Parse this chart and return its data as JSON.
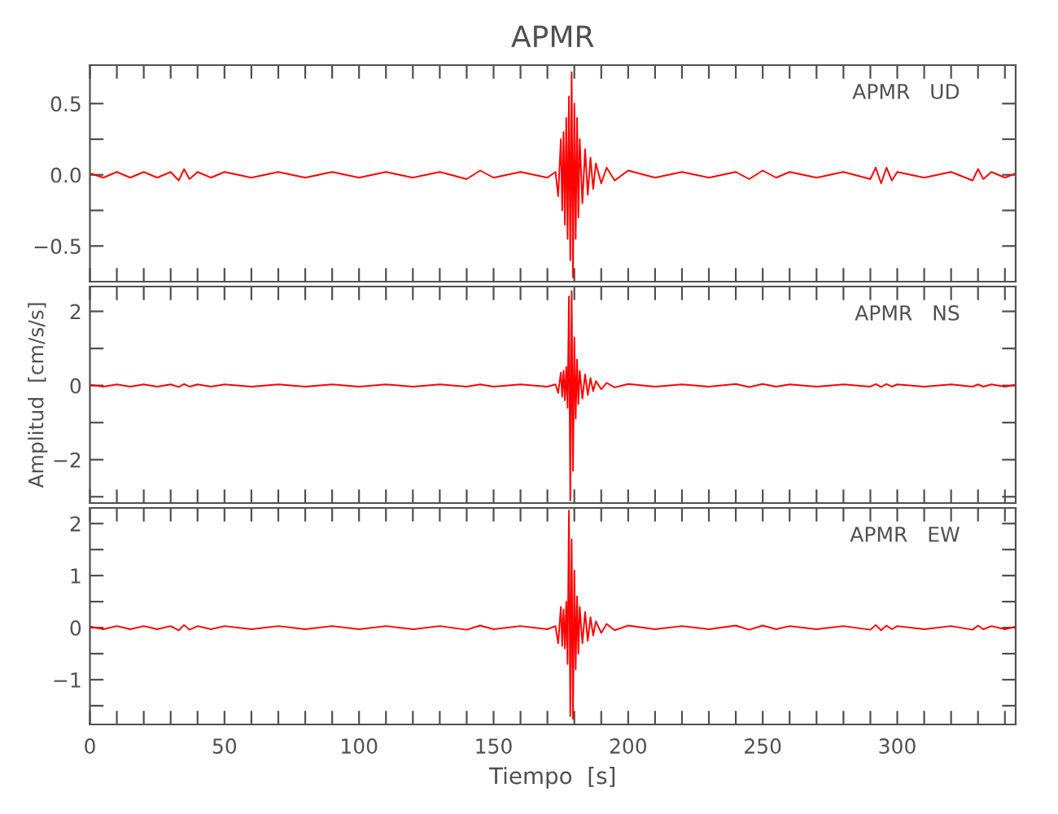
{
  "chart_data": [
    {
      "type": "line",
      "title": "APMR",
      "annotations": [
        "APMR   UD"
      ],
      "tick_labels": "y",
      "xlim": [
        0,
        344
      ],
      "xticks": [
        0,
        {
          "value": 10,
          "label": null
        },
        {
          "value": 20,
          "label": null
        },
        {
          "value": 30,
          "label": null
        },
        {
          "value": 40,
          "label": null
        },
        50,
        {
          "value": 60,
          "label": null
        },
        {
          "value": 70,
          "label": null
        },
        {
          "value": 80,
          "label": null
        },
        {
          "value": 90,
          "label": null
        },
        100,
        {
          "value": 110,
          "label": null
        },
        {
          "value": 120,
          "label": null
        },
        {
          "value": 130,
          "label": null
        },
        {
          "value": 140,
          "label": null
        },
        150,
        {
          "value": 160,
          "label": null
        },
        {
          "value": 170,
          "label": null
        },
        {
          "value": 180,
          "label": null
        },
        {
          "value": 190,
          "label": null
        },
        200,
        {
          "value": 210,
          "label": null
        },
        {
          "value": 220,
          "label": null
        },
        {
          "value": 230,
          "label": null
        },
        {
          "value": 240,
          "label": null
        },
        250,
        {
          "value": 260,
          "label": null
        },
        {
          "value": 270,
          "label": null
        },
        {
          "value": 280,
          "label": null
        },
        {
          "value": 290,
          "label": null
        },
        300,
        {
          "value": 310,
          "label": null
        },
        {
          "value": 320,
          "label": null
        },
        {
          "value": 330,
          "label": null
        },
        {
          "value": 340,
          "label": null
        }
      ],
      "ylim": [
        -0.75,
        0.77
      ],
      "yticks": [
        {
          "value": -0.5,
          "label": "−0.5"
        },
        {
          "value": -0.25,
          "label": null
        },
        {
          "value": 0,
          "label": "0.0"
        },
        {
          "value": 0.25,
          "label": null
        },
        {
          "value": 0.5,
          "label": "0.5"
        }
      ],
      "series": [
        {
          "color": "#ff0000",
          "x": [
            0,
            5,
            10,
            15,
            20,
            25,
            30,
            33,
            35,
            37,
            40,
            45,
            50,
            60,
            70,
            80,
            90,
            100,
            110,
            120,
            130,
            140,
            145,
            150,
            160,
            170,
            173,
            174,
            175,
            175.5,
            176,
            176.5,
            177,
            177.5,
            178,
            178.5,
            179,
            179.5,
            180,
            180.5,
            181,
            181.5,
            182,
            183,
            184,
            185,
            186,
            187,
            188,
            190,
            192,
            195,
            200,
            210,
            220,
            230,
            240,
            245,
            250,
            255,
            260,
            270,
            280,
            290,
            292,
            294,
            296,
            298,
            300,
            310,
            320,
            328,
            330,
            332,
            335,
            340,
            344
          ],
          "values": [
            0.01,
            -0.02,
            0.02,
            -0.02,
            0.02,
            -0.02,
            0.02,
            -0.04,
            0.04,
            -0.03,
            0.02,
            -0.02,
            0.02,
            -0.02,
            0.02,
            -0.02,
            0.02,
            -0.02,
            0.02,
            -0.02,
            0.02,
            -0.03,
            0.03,
            -0.02,
            0.02,
            -0.02,
            0.02,
            -0.15,
            0.25,
            -0.25,
            0.3,
            -0.35,
            0.4,
            -0.45,
            0.55,
            -0.6,
            0.72,
            -0.72,
            0.5,
            -0.45,
            0.4,
            -0.3,
            0.25,
            -0.2,
            0.18,
            -0.14,
            0.12,
            -0.1,
            0.08,
            -0.06,
            0.05,
            -0.04,
            0.03,
            -0.02,
            0.02,
            -0.02,
            0.02,
            -0.03,
            0.03,
            -0.02,
            0.02,
            -0.02,
            0.02,
            -0.03,
            0.05,
            -0.06,
            0.05,
            -0.04,
            0.02,
            -0.02,
            0.02,
            -0.04,
            0.04,
            -0.03,
            0.02,
            -0.02,
            0.01
          ]
        }
      ]
    },
    {
      "type": "line",
      "ylabel": "Amplitud  [cm/s/s]",
      "annotations": [
        "APMR   NS"
      ],
      "tick_labels": "y",
      "xlim": [
        0,
        344
      ],
      "xticks": [
        0,
        {
          "value": 10,
          "label": null
        },
        {
          "value": 20,
          "label": null
        },
        {
          "value": 30,
          "label": null
        },
        {
          "value": 40,
          "label": null
        },
        50,
        {
          "value": 60,
          "label": null
        },
        {
          "value": 70,
          "label": null
        },
        {
          "value": 80,
          "label": null
        },
        {
          "value": 90,
          "label": null
        },
        100,
        {
          "value": 110,
          "label": null
        },
        {
          "value": 120,
          "label": null
        },
        {
          "value": 130,
          "label": null
        },
        {
          "value": 140,
          "label": null
        },
        150,
        {
          "value": 160,
          "label": null
        },
        {
          "value": 170,
          "label": null
        },
        {
          "value": 180,
          "label": null
        },
        {
          "value": 190,
          "label": null
        },
        200,
        {
          "value": 210,
          "label": null
        },
        {
          "value": 220,
          "label": null
        },
        {
          "value": 230,
          "label": null
        },
        {
          "value": 240,
          "label": null
        },
        250,
        {
          "value": 260,
          "label": null
        },
        {
          "value": 270,
          "label": null
        },
        {
          "value": 280,
          "label": null
        },
        {
          "value": 290,
          "label": null
        },
        300,
        {
          "value": 310,
          "label": null
        },
        {
          "value": 320,
          "label": null
        },
        {
          "value": 330,
          "label": null
        },
        {
          "value": 340,
          "label": null
        }
      ],
      "ylim": [
        -3.17,
        2.67
      ],
      "yticks": [
        {
          "value": -3,
          "label": null
        },
        {
          "value": -2,
          "label": "−2"
        },
        {
          "value": -1,
          "label": null
        },
        0,
        {
          "value": 1,
          "label": null
        },
        2
      ],
      "series": [
        {
          "color": "#ff0000",
          "x": [
            0,
            5,
            10,
            15,
            20,
            25,
            30,
            33,
            35,
            37,
            40,
            45,
            50,
            60,
            70,
            80,
            90,
            100,
            110,
            120,
            130,
            140,
            145,
            150,
            160,
            170,
            173,
            174,
            175,
            175.5,
            176,
            176.5,
            177,
            177.5,
            178,
            178.5,
            179,
            179.5,
            180,
            180.5,
            181,
            181.5,
            182,
            183,
            184,
            185,
            186,
            187,
            188,
            190,
            192,
            195,
            200,
            210,
            220,
            230,
            240,
            245,
            250,
            255,
            260,
            270,
            280,
            290,
            292,
            294,
            296,
            298,
            300,
            310,
            320,
            328,
            330,
            332,
            335,
            340,
            344
          ],
          "values": [
            0.02,
            -0.03,
            0.03,
            -0.03,
            0.03,
            -0.03,
            0.03,
            -0.04,
            0.04,
            -0.03,
            0.03,
            -0.03,
            0.03,
            -0.03,
            0.03,
            -0.03,
            0.03,
            -0.03,
            0.03,
            -0.03,
            0.03,
            -0.03,
            0.03,
            -0.03,
            0.03,
            -0.03,
            0.03,
            -0.2,
            0.35,
            -0.3,
            0.4,
            -0.4,
            0.5,
            -0.6,
            2.4,
            -3.1,
            2.55,
            -2.3,
            1.3,
            -0.9,
            0.7,
            -0.5,
            0.4,
            -0.35,
            0.3,
            -0.25,
            0.2,
            -0.15,
            0.12,
            -0.1,
            0.07,
            -0.05,
            0.04,
            -0.03,
            0.03,
            -0.03,
            0.04,
            -0.04,
            0.04,
            -0.03,
            0.03,
            -0.03,
            0.03,
            -0.03,
            0.04,
            -0.04,
            0.04,
            -0.03,
            0.03,
            -0.03,
            0.03,
            -0.03,
            0.03,
            -0.03,
            0.03,
            -0.03,
            0.02
          ]
        }
      ]
    },
    {
      "type": "line",
      "xlabel": "Tiempo  [s]",
      "annotations": [
        "APMR   EW"
      ],
      "xlim": [
        0,
        344
      ],
      "xticks": [
        0,
        {
          "value": 10,
          "label": null
        },
        {
          "value": 20,
          "label": null
        },
        {
          "value": 30,
          "label": null
        },
        {
          "value": 40,
          "label": null
        },
        50,
        {
          "value": 60,
          "label": null
        },
        {
          "value": 70,
          "label": null
        },
        {
          "value": 80,
          "label": null
        },
        {
          "value": 90,
          "label": null
        },
        100,
        {
          "value": 110,
          "label": null
        },
        {
          "value": 120,
          "label": null
        },
        {
          "value": 130,
          "label": null
        },
        {
          "value": 140,
          "label": null
        },
        150,
        {
          "value": 160,
          "label": null
        },
        {
          "value": 170,
          "label": null
        },
        {
          "value": 180,
          "label": null
        },
        {
          "value": 190,
          "label": null
        },
        200,
        {
          "value": 210,
          "label": null
        },
        {
          "value": 220,
          "label": null
        },
        {
          "value": 230,
          "label": null
        },
        {
          "value": 240,
          "label": null
        },
        250,
        {
          "value": 260,
          "label": null
        },
        {
          "value": 270,
          "label": null
        },
        {
          "value": 280,
          "label": null
        },
        {
          "value": 290,
          "label": null
        },
        300,
        {
          "value": 310,
          "label": null
        },
        {
          "value": 320,
          "label": null
        },
        {
          "value": 330,
          "label": null
        },
        {
          "value": 340,
          "label": null
        }
      ],
      "ylim": [
        -1.86,
        2.3
      ],
      "yticks": [
        {
          "value": -1.5,
          "label": null
        },
        {
          "value": -1,
          "label": "−1"
        },
        {
          "value": -0.5,
          "label": null
        },
        0,
        {
          "value": 0.5,
          "label": null
        },
        1,
        {
          "value": 1.5,
          "label": null
        },
        2
      ],
      "series": [
        {
          "color": "#ff0000",
          "x": [
            0,
            5,
            10,
            15,
            20,
            25,
            30,
            33,
            35,
            37,
            40,
            45,
            50,
            60,
            70,
            80,
            90,
            100,
            110,
            120,
            130,
            140,
            145,
            150,
            160,
            170,
            173,
            174,
            175,
            175.5,
            176,
            176.5,
            177,
            177.5,
            178,
            178.5,
            179,
            179.5,
            180,
            180.5,
            181,
            181.5,
            182,
            183,
            184,
            185,
            186,
            187,
            188,
            190,
            192,
            195,
            200,
            210,
            220,
            230,
            240,
            245,
            250,
            255,
            260,
            270,
            280,
            290,
            292,
            294,
            296,
            298,
            300,
            310,
            320,
            328,
            330,
            332,
            335,
            340,
            344
          ],
          "values": [
            0.02,
            -0.03,
            0.03,
            -0.03,
            0.03,
            -0.03,
            0.03,
            -0.05,
            0.05,
            -0.04,
            0.03,
            -0.03,
            0.03,
            -0.03,
            0.03,
            -0.03,
            0.03,
            -0.03,
            0.03,
            -0.03,
            0.03,
            -0.04,
            0.04,
            -0.03,
            0.03,
            -0.03,
            0.03,
            -0.3,
            0.4,
            -0.35,
            0.35,
            -0.4,
            0.5,
            -0.7,
            2.25,
            -1.7,
            1.7,
            -1.75,
            1.1,
            -0.8,
            0.6,
            -0.5,
            0.4,
            -0.3,
            0.3,
            -0.25,
            0.2,
            -0.15,
            0.12,
            -0.1,
            0.07,
            -0.05,
            0.04,
            -0.03,
            0.03,
            -0.03,
            0.04,
            -0.04,
            0.04,
            -0.03,
            0.03,
            -0.03,
            0.03,
            -0.04,
            0.05,
            -0.05,
            0.04,
            -0.03,
            0.03,
            -0.03,
            0.03,
            -0.04,
            0.04,
            -0.03,
            0.03,
            -0.03,
            0.02
          ]
        }
      ]
    }
  ]
}
